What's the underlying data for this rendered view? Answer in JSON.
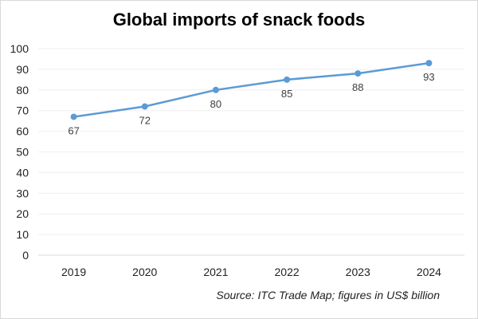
{
  "chart_data": {
    "type": "line",
    "title": "Global imports of snack foods",
    "categories": [
      "2019",
      "2020",
      "2021",
      "2022",
      "2023",
      "2024"
    ],
    "values": [
      67,
      72,
      80,
      85,
      88,
      93
    ],
    "data_labels": [
      "67",
      "72",
      "80",
      "85",
      "88",
      "93"
    ],
    "ylim": [
      0,
      100
    ],
    "yticks": [
      0,
      10,
      20,
      30,
      40,
      50,
      60,
      70,
      80,
      90,
      100
    ],
    "grid": true,
    "legend": "none",
    "line_color": "#5b9bd5",
    "source": "Source: ITC Trade Map; figures in US$ billion"
  }
}
